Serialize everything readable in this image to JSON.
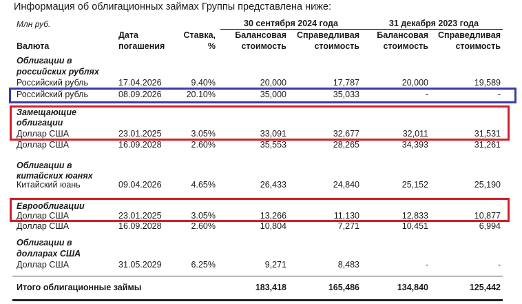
{
  "intro": "Информация об облигационных займах Группы представлена ниже:",
  "units": "Млн руб.",
  "periods": [
    "30 сентября 2024 года",
    "31 декабря 2023 года"
  ],
  "headers": {
    "currency": "Валюта",
    "date": [
      "Дата",
      "погашения"
    ],
    "rate": [
      "Ставка,",
      "%"
    ],
    "book1": [
      "Балансовая",
      "стоимость"
    ],
    "fair1": [
      "Справедливая",
      "стоимость"
    ],
    "book2": [
      "Балансовая",
      "стоимость"
    ],
    "fair2": [
      "Справедливая",
      "стоимость"
    ]
  },
  "sections": [
    {
      "title": [
        "Облигации в",
        "российских рублях"
      ],
      "rows": [
        {
          "currency": "Российский рубль",
          "date": "17.04.2026",
          "rate": "9.40%",
          "v": [
            "20,000",
            "17,787",
            "20,000",
            "19,589"
          ]
        },
        {
          "currency": "Российский рубль",
          "date": "08.09.2026",
          "rate": "20.10%",
          "v": [
            "35,000",
            "35,033",
            "-",
            "-"
          ],
          "highlight": "#3a3aa8"
        }
      ]
    },
    {
      "title": [
        "Замещающие",
        "облигации"
      ],
      "rows": [
        {
          "currency": "Доллар США",
          "date": "23.01.2025",
          "rate": "3.05%",
          "v": [
            "33,091",
            "32,677",
            "32,011",
            "31,531"
          ],
          "highlight": "#d0202a"
        },
        {
          "currency": "Доллар США",
          "date": "16.09.2028",
          "rate": "2.60%",
          "v": [
            "35,553",
            "28,265",
            "34,393",
            "31,261"
          ]
        }
      ]
    },
    {
      "title": [
        "Облигации в",
        "китайских юанях"
      ],
      "rows": [
        {
          "currency": "Китайский юань",
          "date": "09.04.2026",
          "rate": "4.65%",
          "v": [
            "26,433",
            "24,840",
            "25,152",
            "25,190"
          ]
        }
      ]
    },
    {
      "title": [
        "Еврооблигации"
      ],
      "rows": [
        {
          "currency": "Доллар США",
          "date": "23.01.2025",
          "rate": "3.05%",
          "v": [
            "13,266",
            "11,130",
            "12,833",
            "10,877"
          ],
          "highlight": "#d0202a"
        },
        {
          "currency": "Доллар США",
          "date": "16.09.2028",
          "rate": "2.60%",
          "v": [
            "10,804",
            "7,271",
            "10,451",
            "6,994"
          ]
        }
      ]
    },
    {
      "title": [
        "Облигации в",
        "долларах США"
      ],
      "rows": [
        {
          "currency": "Доллар США",
          "date": "31.05.2029",
          "rate": "6.25%",
          "v": [
            "9,271",
            "8,483",
            "-",
            "-"
          ]
        }
      ]
    }
  ],
  "total": {
    "label": "Итого облигационные займы",
    "v": [
      "183,418",
      "165,486",
      "134,840",
      "125,442"
    ]
  }
}
